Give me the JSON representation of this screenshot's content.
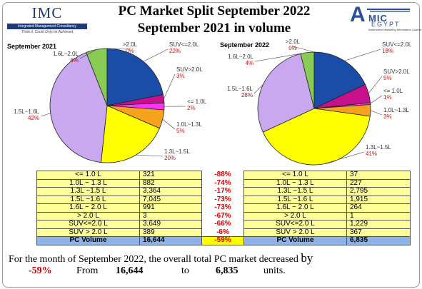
{
  "header": {
    "title_line1": "PC Market Split September 2022",
    "title_line2": "September 2021 in volume",
    "imc_logo": {
      "name": "IMC",
      "bar_text": "Integrated Management Consultancy",
      "tagline": "Think it. Could Only be Achieved"
    },
    "amic_logo": {
      "big": "A",
      "mic": "MIC",
      "egypt": "EGYPT",
      "sub": "Automotive Marketing Information Council"
    }
  },
  "chart_data": [
    {
      "type": "pie",
      "title": "September 2021",
      "slices": [
        {
          "name": "SUV<=2.0L",
          "value": 3649,
          "pct": "22%",
          "color": "#1a4da8"
        },
        {
          "name": "SUV>2.0L",
          "value": 389,
          "pct": "3%",
          "color": "#c8108c"
        },
        {
          "name": "<= 1.0L",
          "value": 321,
          "pct": "2%",
          "color": "#ff33ff"
        },
        {
          "name": "1.0L~1.3L",
          "value": 882,
          "pct": "5%",
          "color": "#f7a21b"
        },
        {
          "name": "1.3L~1.5L",
          "value": 3364,
          "pct": "20%",
          "color": "#ffff00"
        },
        {
          "name": "1.5L~1.6L",
          "value": 7045,
          "pct": "42%",
          "color": "#c9a8f0"
        },
        {
          "name": "1.6L~2.0L",
          "value": 991,
          "pct": "6%",
          "color": "#88cc55"
        },
        {
          "name": ">2.0L",
          "value": 3,
          "pct": "0%",
          "color": "#cccccc"
        }
      ]
    },
    {
      "type": "pie",
      "title": "September 2022",
      "slices": [
        {
          "name": "SUV<=2.0L",
          "value": 1229,
          "pct": "18%",
          "color": "#1a4da8"
        },
        {
          "name": "SUV>2.0L",
          "value": 367,
          "pct": "5%",
          "color": "#c8108c"
        },
        {
          "name": "<= 1.0L",
          "value": 37,
          "pct": "1%",
          "color": "#ff33ff"
        },
        {
          "name": "1.0L~1.3L",
          "value": 227,
          "pct": "3%",
          "color": "#f7a21b"
        },
        {
          "name": "1.3L~1.5L",
          "value": 2795,
          "pct": "41%",
          "color": "#ffff00"
        },
        {
          "name": "1.5L~1.6L",
          "value": 1915,
          "pct": "28%",
          "color": "#c9a8f0"
        },
        {
          "name": "1.6L~2.0L",
          "value": 264,
          "pct": "4%",
          "color": "#88cc55"
        },
        {
          "name": ">2.0L",
          "value": 1,
          "pct": "0%",
          "color": "#cccccc"
        }
      ]
    }
  ],
  "table": {
    "rows": [
      {
        "name": "<= 1.0 L",
        "v2021": "321",
        "change": "-88%",
        "v2022": "37"
      },
      {
        "name": "1.0L ~ 1.3 L",
        "v2021": "882",
        "change": "-74%",
        "v2022": "227"
      },
      {
        "name": "1.3L ~1.5 L",
        "v2021": "3,364",
        "change": "-17%",
        "v2022": "2,795"
      },
      {
        "name": "1.5L ~1.6 L",
        "v2021": "7,045",
        "change": "-73%",
        "v2022": "1,915"
      },
      {
        "name": "1.6L ~ 2.0 L",
        "v2021": "991",
        "change": "-73%",
        "v2022": "264"
      },
      {
        "name": "> 2.0 L",
        "v2021": "3",
        "change": "-67%",
        "v2022": "1"
      },
      {
        "name": "SUV<=2.0 L",
        "v2021": "3,649",
        "change": "-66%",
        "v2022": "1,229"
      },
      {
        "name": "SUV > 2.0 L",
        "v2021": "389",
        "change": "-6%",
        "v2022": "367"
      }
    ],
    "total": {
      "name": "PC Volume",
      "v2021": "16,644",
      "change": "-59%",
      "v2022": "6,835"
    }
  },
  "summary": {
    "line1": "For the month of September 2022, the overall total PC market decreased",
    "by": "by",
    "pct": "-59%",
    "from_word": "From",
    "from_val": "16,644",
    "to_word": "to",
    "to_val": "6,835",
    "units": "units."
  }
}
